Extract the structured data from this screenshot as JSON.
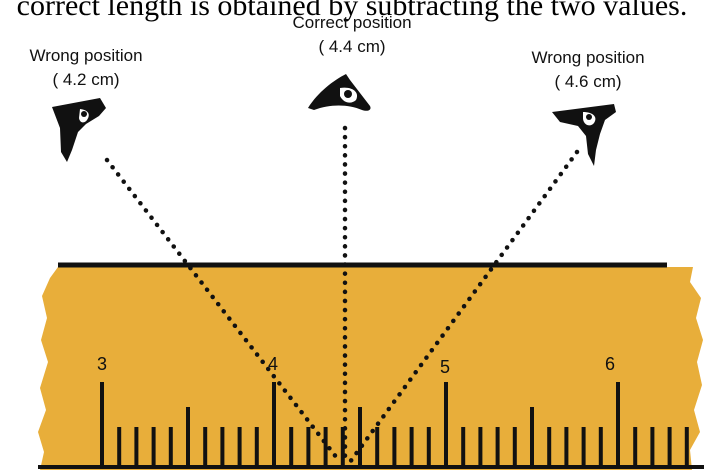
{
  "header_text": "correct length is obtained by subtracting the two values.",
  "viewpoints": [
    {
      "id": "left",
      "title": "Wrong position",
      "reading": "( 4.2 cm)"
    },
    {
      "id": "center",
      "title": "Correct position",
      "reading": "( 4.4 cm)"
    },
    {
      "id": "right",
      "title": "Wrong position",
      "reading": "( 4.6 cm)"
    }
  ],
  "ruler": {
    "numbers": [
      "3",
      "4",
      "5",
      "6"
    ],
    "color": "#E8AE3A",
    "unit": "cm"
  },
  "colors": {
    "ruler_fill": "#E8AE3A",
    "ink": "#111111"
  }
}
